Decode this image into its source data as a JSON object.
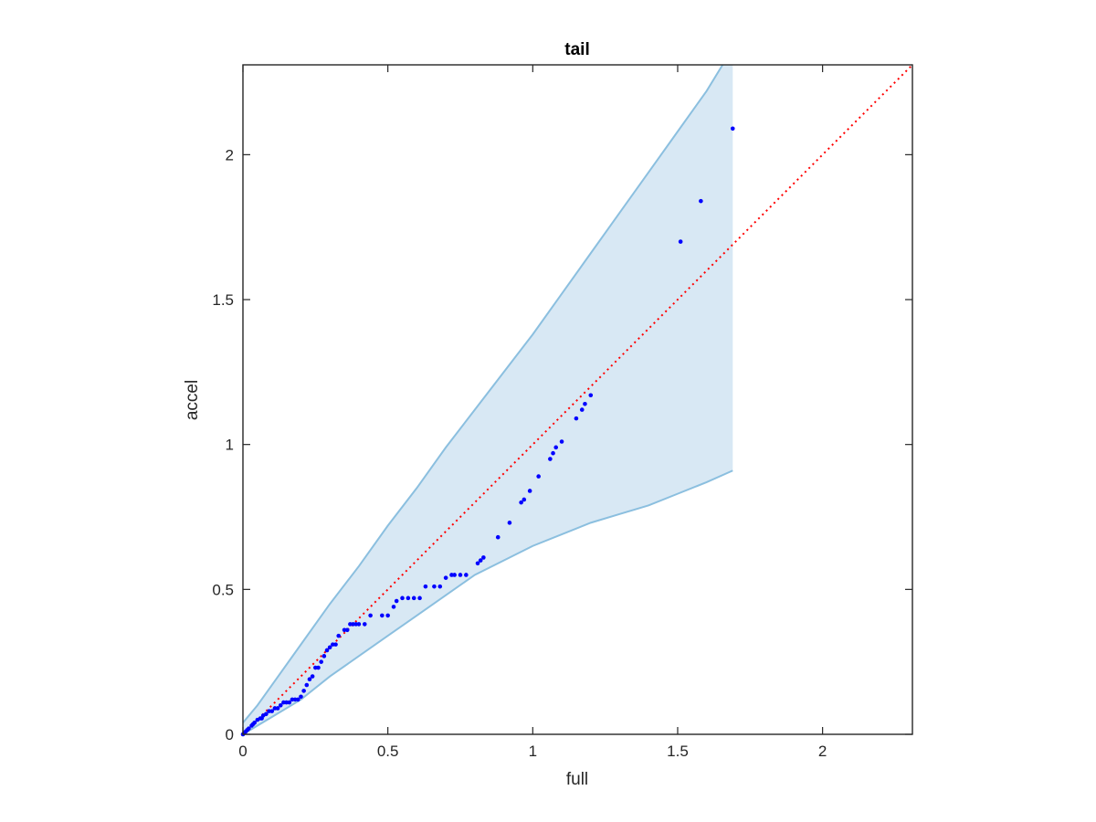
{
  "chart_data": {
    "type": "scatter",
    "title": "tail",
    "xlabel": "full",
    "ylabel": "accel",
    "xlim": [
      0,
      2.31
    ],
    "ylim": [
      0,
      2.31
    ],
    "xticks": [
      0,
      0.5,
      1,
      1.5,
      2
    ],
    "xtick_labels": [
      "0",
      "0.5",
      "1",
      "1.5",
      "2"
    ],
    "yticks": [
      0,
      0.5,
      1,
      1.5,
      2
    ],
    "ytick_labels": [
      "0",
      "0.5",
      "1",
      "1.5",
      "2"
    ],
    "grid": false,
    "legend": "none",
    "colors": {
      "points": "#0000ff",
      "reference_line": "#ff0000",
      "band_fill": "#d8e8f4",
      "band_edge": "#8bbfdf",
      "axes": "#262626"
    },
    "reference_line": {
      "style": "dotted",
      "x": [
        0,
        2.31
      ],
      "y": [
        0,
        2.31
      ]
    },
    "confidence_band": {
      "upper": [
        [
          0,
          0.04
        ],
        [
          0.05,
          0.1
        ],
        [
          0.1,
          0.17
        ],
        [
          0.2,
          0.31
        ],
        [
          0.3,
          0.45
        ],
        [
          0.4,
          0.58
        ],
        [
          0.5,
          0.72
        ],
        [
          0.6,
          0.85
        ],
        [
          0.7,
          0.99
        ],
        [
          0.8,
          1.12
        ],
        [
          0.9,
          1.25
        ],
        [
          1.0,
          1.38
        ],
        [
          1.1,
          1.52
        ],
        [
          1.2,
          1.66
        ],
        [
          1.3,
          1.8
        ],
        [
          1.4,
          1.94
        ],
        [
          1.5,
          2.08
        ],
        [
          1.6,
          2.22
        ],
        [
          1.655,
          2.31
        ],
        [
          1.69,
          2.31
        ]
      ],
      "lower": [
        [
          0,
          0
        ],
        [
          0.05,
          0.03
        ],
        [
          0.1,
          0.06
        ],
        [
          0.2,
          0.12
        ],
        [
          0.3,
          0.2
        ],
        [
          0.4,
          0.27
        ],
        [
          0.5,
          0.34
        ],
        [
          0.6,
          0.41
        ],
        [
          0.7,
          0.48
        ],
        [
          0.8,
          0.55
        ],
        [
          0.9,
          0.6
        ],
        [
          1.0,
          0.65
        ],
        [
          1.1,
          0.69
        ],
        [
          1.2,
          0.73
        ],
        [
          1.3,
          0.76
        ],
        [
          1.4,
          0.79
        ],
        [
          1.5,
          0.83
        ],
        [
          1.6,
          0.87
        ],
        [
          1.69,
          0.91
        ]
      ]
    },
    "series": [
      {
        "x": [
          0,
          0.005,
          0.01,
          0.015,
          0.02,
          0.03,
          0.035,
          0.04,
          0.05,
          0.06,
          0.065,
          0.07,
          0.08,
          0.09,
          0.1,
          0.11,
          0.12,
          0.13,
          0.14,
          0.15,
          0.16,
          0.17,
          0.18,
          0.19,
          0.2,
          0.21,
          0.22,
          0.23,
          0.24,
          0.25,
          0.26,
          0.27,
          0.28,
          0.29,
          0.3,
          0.31,
          0.32,
          0.33,
          0.35,
          0.36,
          0.37,
          0.38,
          0.39,
          0.4,
          0.42,
          0.44,
          0.48,
          0.5,
          0.52,
          0.53,
          0.55,
          0.57,
          0.59,
          0.61,
          0.63,
          0.66,
          0.68,
          0.7,
          0.72,
          0.73,
          0.75,
          0.77,
          0.81,
          0.82,
          0.83,
          0.88,
          0.92,
          0.96,
          0.97,
          0.99,
          1.02,
          1.06,
          1.07,
          1.08,
          1.1,
          1.15,
          1.17,
          1.18,
          1.2,
          1.51,
          1.58,
          1.69
        ],
        "y": [
          0,
          0.005,
          0.01,
          0.015,
          0.02,
          0.03,
          0.035,
          0.04,
          0.05,
          0.055,
          0.055,
          0.065,
          0.07,
          0.08,
          0.08,
          0.09,
          0.09,
          0.1,
          0.11,
          0.11,
          0.11,
          0.12,
          0.12,
          0.12,
          0.13,
          0.15,
          0.17,
          0.19,
          0.2,
          0.23,
          0.23,
          0.25,
          0.27,
          0.29,
          0.3,
          0.31,
          0.31,
          0.34,
          0.36,
          0.36,
          0.38,
          0.38,
          0.38,
          0.38,
          0.38,
          0.41,
          0.41,
          0.41,
          0.44,
          0.46,
          0.47,
          0.47,
          0.47,
          0.47,
          0.51,
          0.51,
          0.51,
          0.54,
          0.55,
          0.55,
          0.55,
          0.55,
          0.59,
          0.6,
          0.61,
          0.68,
          0.73,
          0.8,
          0.81,
          0.84,
          0.89,
          0.95,
          0.97,
          0.99,
          1.01,
          1.09,
          1.12,
          1.14,
          1.17,
          1.7,
          1.84,
          2.09
        ]
      }
    ]
  }
}
